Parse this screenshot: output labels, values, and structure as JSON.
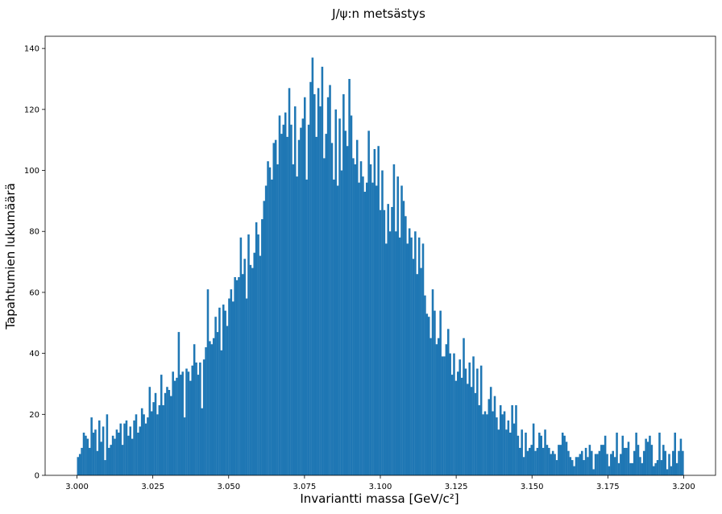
{
  "chart_data": {
    "type": "bar",
    "title": "J/ψ:n metsästys",
    "xlabel": "Invariantti massa [GeV/c²]",
    "ylabel": "Tapahtumien lukumäärä",
    "xlim": [
      2.9895,
      3.2105
    ],
    "ylim": [
      0,
      144
    ],
    "xticks": [
      "3.000",
      "3.025",
      "3.050",
      "3.075",
      "3.100",
      "3.125",
      "3.150",
      "3.175",
      "3.200"
    ],
    "xtick_values": [
      3.0,
      3.025,
      3.05,
      3.075,
      3.1,
      3.125,
      3.15,
      3.175,
      3.2
    ],
    "yticks": [
      "0",
      "20",
      "40",
      "60",
      "80",
      "100",
      "120",
      "140"
    ],
    "ytick_values": [
      0,
      20,
      40,
      60,
      80,
      100,
      120,
      140
    ],
    "bin_start": 3.0,
    "bin_end": 3.2,
    "bar_color": "#1f77b4",
    "grid": false,
    "values": [
      6,
      7,
      9,
      14,
      13,
      12,
      9,
      19,
      14,
      15,
      8,
      18,
      11,
      16,
      5,
      20,
      9,
      10,
      13,
      12,
      15,
      14,
      17,
      10,
      17,
      18,
      13,
      16,
      12,
      18,
      20,
      14,
      16,
      22,
      20,
      17,
      19,
      29,
      21,
      24,
      27,
      20,
      23,
      33,
      23,
      27,
      29,
      28,
      26,
      34,
      31,
      32,
      47,
      33,
      34,
      19,
      35,
      34,
      31,
      36,
      43,
      37,
      33,
      37,
      22,
      38,
      42,
      61,
      44,
      43,
      45,
      52,
      47,
      55,
      41,
      56,
      54,
      49,
      58,
      61,
      57,
      65,
      64,
      65,
      78,
      66,
      71,
      58,
      79,
      69,
      68,
      73,
      83,
      79,
      72,
      84,
      90,
      95,
      103,
      101,
      97,
      109,
      110,
      102,
      118,
      112,
      115,
      119,
      111,
      127,
      115,
      102,
      121,
      98,
      110,
      114,
      117,
      124,
      97,
      115,
      129,
      137,
      125,
      111,
      127,
      121,
      134,
      104,
      112,
      124,
      128,
      109,
      97,
      120,
      95,
      117,
      100,
      125,
      113,
      108,
      130,
      118,
      104,
      102,
      110,
      96,
      103,
      98,
      93,
      96,
      113,
      102,
      96,
      107,
      95,
      108,
      87,
      100,
      87,
      76,
      89,
      80,
      88,
      102,
      80,
      98,
      78,
      95,
      90,
      85,
      76,
      81,
      78,
      71,
      80,
      66,
      78,
      68,
      76,
      59,
      53,
      52,
      45,
      61,
      54,
      43,
      45,
      54,
      39,
      39,
      43,
      48,
      40,
      33,
      40,
      31,
      34,
      38,
      32,
      45,
      35,
      30,
      37,
      29,
      39,
      27,
      35,
      23,
      36,
      20,
      21,
      20,
      25,
      29,
      21,
      26,
      19,
      15,
      23,
      20,
      21,
      15,
      18,
      14,
      23,
      17,
      23,
      13,
      9,
      15,
      6,
      14,
      8,
      9,
      10,
      17,
      8,
      9,
      14,
      13,
      9,
      15,
      10,
      9,
      7,
      8,
      7,
      5,
      10,
      10,
      14,
      13,
      11,
      8,
      6,
      5,
      3,
      6,
      6,
      7,
      8,
      5,
      9,
      6,
      10,
      8,
      2,
      7,
      7,
      8,
      10,
      10,
      13,
      7,
      3,
      7,
      8,
      6,
      14,
      4,
      7,
      13,
      9,
      9,
      11,
      4,
      4,
      8,
      14,
      10,
      6,
      4,
      8,
      12,
      11,
      13,
      10,
      3,
      4,
      5,
      14,
      5,
      10,
      8,
      2,
      7,
      3,
      8,
      14,
      4,
      8,
      12,
      8
    ]
  }
}
